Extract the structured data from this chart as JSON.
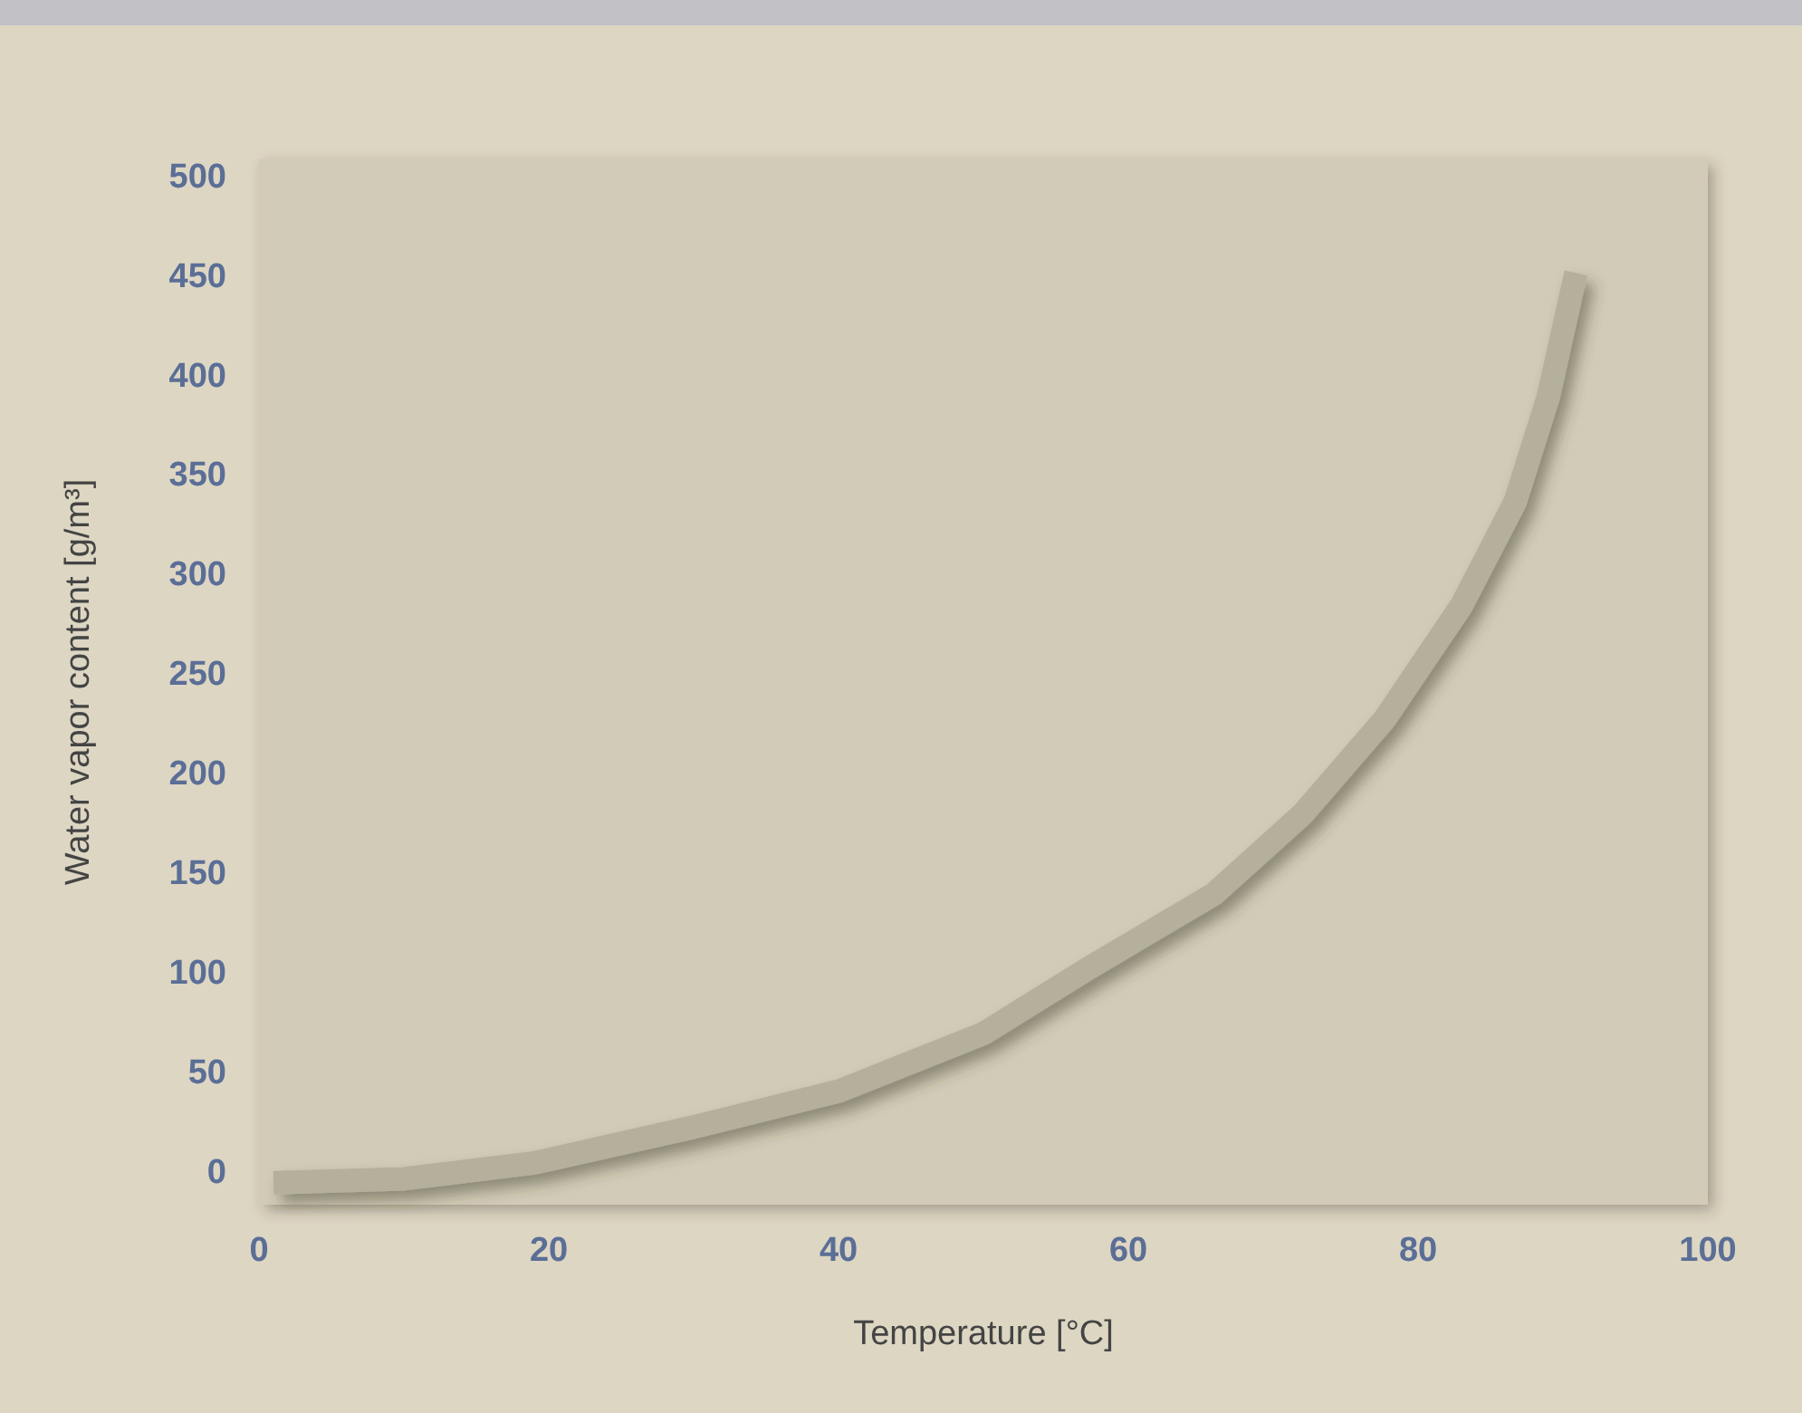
{
  "chart_data": {
    "type": "line",
    "xlabel": "Temperature [°C]",
    "ylabel": "Water vapor content [g/m³]",
    "x": [
      1,
      10,
      19,
      30,
      40,
      50,
      57.3,
      65.9,
      72,
      77.7,
      83,
      86.7,
      89,
      90.9
    ],
    "series": [
      {
        "color": "#b5b09b",
        "values": [
          -5,
          -3,
          5,
          23,
          41,
          70,
          103,
          140,
          180,
          228,
          285,
          337,
          390,
          452
        ]
      }
    ],
    "xlim": [
      0,
      100
    ],
    "xticks": [
      0,
      20,
      40,
      60,
      80,
      100
    ],
    "ylim": [
      -16,
      509
    ],
    "yticks": [
      0,
      50,
      100,
      150,
      200,
      250,
      300,
      350,
      400,
      450,
      500
    ],
    "grid": false,
    "marker": "none",
    "line_style": "solid"
  }
}
